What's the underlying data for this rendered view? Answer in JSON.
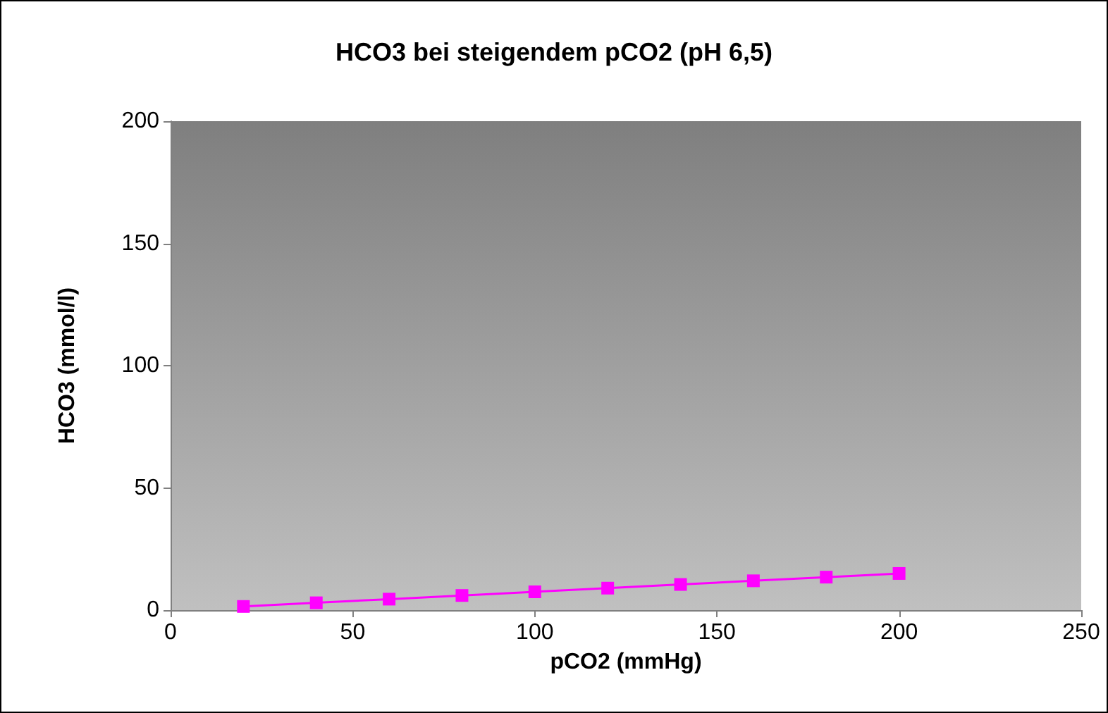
{
  "chart_data": {
    "type": "line",
    "title": "HCO3 bei steigendem pCO2 (pH 6,5)",
    "xlabel": "pCO2 (mmHg)",
    "ylabel": "HCO3 (mmol/l)",
    "x": [
      20,
      40,
      60,
      80,
      100,
      120,
      140,
      160,
      180,
      200
    ],
    "series": [
      {
        "color": "#ff00ff",
        "values": [
          1.5,
          3,
          4.5,
          6,
          7.5,
          9,
          10.5,
          12,
          13.5,
          15
        ]
      }
    ],
    "xlim": [
      0,
      250
    ],
    "xticks": [
      0,
      50,
      100,
      150,
      200,
      250
    ],
    "ylim": [
      0,
      200
    ],
    "yticks": [
      0,
      50,
      100,
      150,
      200
    ],
    "grid": false,
    "marker": "square",
    "line_style": "solid"
  }
}
